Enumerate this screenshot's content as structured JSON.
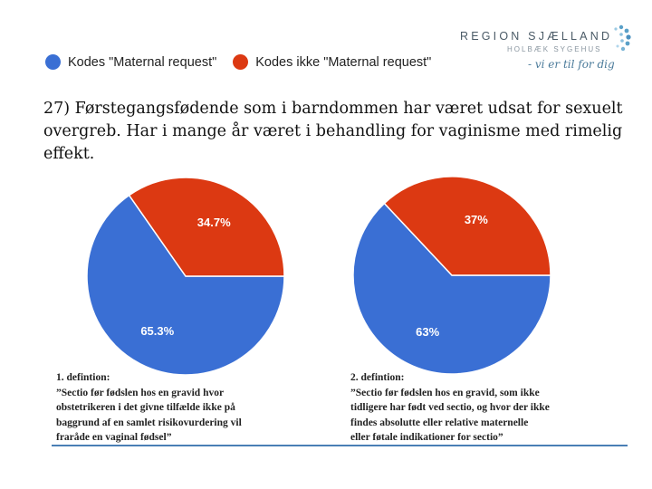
{
  "logo": {
    "name": "REGION SJÆLLAND",
    "sub": "HOLBÆK SYGEHUS",
    "tagline": "- vi er til for dig"
  },
  "legend": [
    {
      "label": "Kodes \"Maternal request\"",
      "color": "#3a6fd4"
    },
    {
      "label": "Kodes ikke \"Maternal request\"",
      "color": "#dc3912"
    }
  ],
  "question": "27) Førstegangsfødende som i barndommen har været udsat for sexuelt overgreb. Har i mange år været i behandling for vaginisme med rimelig effekt.",
  "chart_data": [
    {
      "type": "pie",
      "slices": [
        {
          "label": "Kodes \"Maternal request\"",
          "value": 65.3,
          "display": "65.3%",
          "color": "#3a6fd4"
        },
        {
          "label": "Kodes ikke \"Maternal request\"",
          "value": 34.7,
          "display": "34.7%",
          "color": "#dc3912"
        }
      ]
    },
    {
      "type": "pie",
      "slices": [
        {
          "label": "Kodes \"Maternal request\"",
          "value": 63,
          "display": "63%",
          "color": "#3a6fd4"
        },
        {
          "label": "Kodes ikke \"Maternal request\"",
          "value": 37,
          "display": "37%",
          "color": "#dc3912"
        }
      ]
    }
  ],
  "definitions": [
    {
      "title": "1. defintion:",
      "lines": [
        "”Sectio før fødslen hos en gravid hvor",
        "obstetrikeren  i det givne tilfælde ikke på",
        "baggrund af en samlet risikovurdering  vil",
        "fraråde en vaginal fødsel”"
      ]
    },
    {
      "title": "2. defintion:",
      "lines": [
        "”Sectio før fødslen hos en gravid, som ikke",
        "tidligere har født ved sectio, og hvor der ikke",
        "findes absolutte eller relative maternelle",
        "eller føtale indikationer  for sectio”"
      ]
    }
  ]
}
